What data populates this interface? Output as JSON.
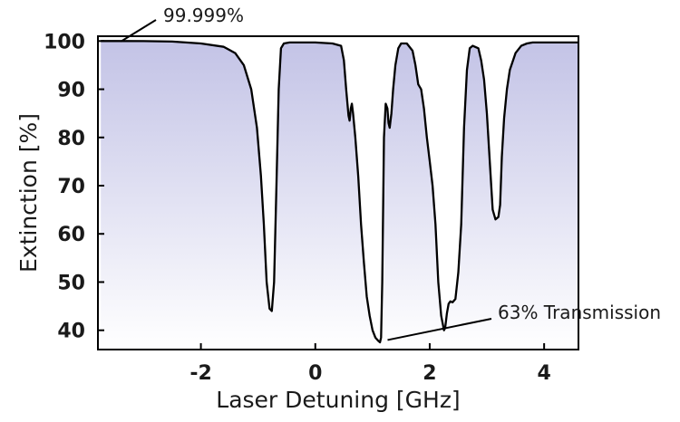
{
  "chart_data": {
    "type": "area",
    "title": "",
    "xlabel": "Laser Detuning [GHz]",
    "ylabel": "Extinction [%]",
    "xlim": [
      -3.8,
      4.6
    ],
    "ylim": [
      36,
      101
    ],
    "x_ticks": [
      -2,
      0,
      2,
      4
    ],
    "x_tick_labels": [
      "-2",
      "0",
      "2",
      "4"
    ],
    "y_ticks": [
      40,
      50,
      60,
      70,
      80,
      90,
      100
    ],
    "y_tick_labels": [
      "40",
      "50",
      "60",
      "70",
      "80",
      "90",
      "100"
    ],
    "grid": false,
    "legend": "none",
    "fill_gradient": [
      "#c3c3e6",
      "#ffffff"
    ],
    "line_color": "#000000",
    "series": [
      {
        "x": [
          -3.75,
          -3.0,
          -2.5,
          -2.0,
          -1.6,
          -1.4,
          -1.25,
          -1.12,
          -1.02,
          -0.95,
          -0.9,
          -0.85,
          -0.8,
          -0.76,
          -0.72,
          -0.68,
          -0.64,
          -0.6,
          -0.55,
          -0.45,
          -0.2,
          0.0,
          0.3,
          0.45,
          0.5,
          0.54,
          0.58,
          0.6,
          0.62,
          0.64,
          0.66,
          0.7,
          0.75,
          0.8,
          0.85,
          0.9,
          0.95,
          1.0,
          1.05,
          1.1,
          1.13,
          1.15,
          1.17,
          1.2,
          1.23,
          1.26,
          1.28,
          1.3,
          1.33,
          1.36,
          1.4,
          1.45,
          1.5,
          1.6,
          1.7,
          1.75,
          1.8,
          1.85,
          1.9,
          1.95,
          2.0,
          2.05,
          2.1,
          2.15,
          2.2,
          2.25,
          2.27,
          2.3,
          2.33,
          2.36,
          2.4,
          2.45,
          2.5,
          2.55,
          2.6,
          2.65,
          2.7,
          2.75,
          2.85,
          2.9,
          2.95,
          3.0,
          3.05,
          3.1,
          3.15,
          3.2,
          3.23,
          3.26,
          3.3,
          3.35,
          3.4,
          3.5,
          3.6,
          3.7,
          3.8,
          4.0,
          4.2,
          4.4,
          4.6
        ],
        "y": [
          99.999,
          99.99,
          99.9,
          99.5,
          98.8,
          97.5,
          95.0,
          90.0,
          82.0,
          72.0,
          62.0,
          50.0,
          44.5,
          44.0,
          50.0,
          70.0,
          90.0,
          98.5,
          99.5,
          99.7,
          99.7,
          99.7,
          99.5,
          99.0,
          96.0,
          90.0,
          84.5,
          83.5,
          86.0,
          87.0,
          85.0,
          80.0,
          72.0,
          62.0,
          54.0,
          47.0,
          43.0,
          40.0,
          38.5,
          37.8,
          37.5,
          38.5,
          50.0,
          80.0,
          87.0,
          86.0,
          83.0,
          82.0,
          85.0,
          90.0,
          95.0,
          98.5,
          99.5,
          99.5,
          98.0,
          95.0,
          91.0,
          90.0,
          86.0,
          80.0,
          75.0,
          70.0,
          62.0,
          50.0,
          43.0,
          40.0,
          40.5,
          43.5,
          45.5,
          46.0,
          45.8,
          46.5,
          52.0,
          62.0,
          82.0,
          94.0,
          98.5,
          99.0,
          98.5,
          96.0,
          92.0,
          85.0,
          75.0,
          65.0,
          63.0,
          63.5,
          66.0,
          76.0,
          84.0,
          90.0,
          94.0,
          97.5,
          99.0,
          99.5,
          99.7,
          99.7,
          99.7,
          99.7,
          99.7
        ]
      }
    ],
    "annotations": [
      {
        "text": "99.999%",
        "point": [
          -3.4,
          99.9
        ]
      },
      {
        "text": "63% Transmission",
        "point": [
          1.2,
          37.8
        ]
      }
    ]
  }
}
